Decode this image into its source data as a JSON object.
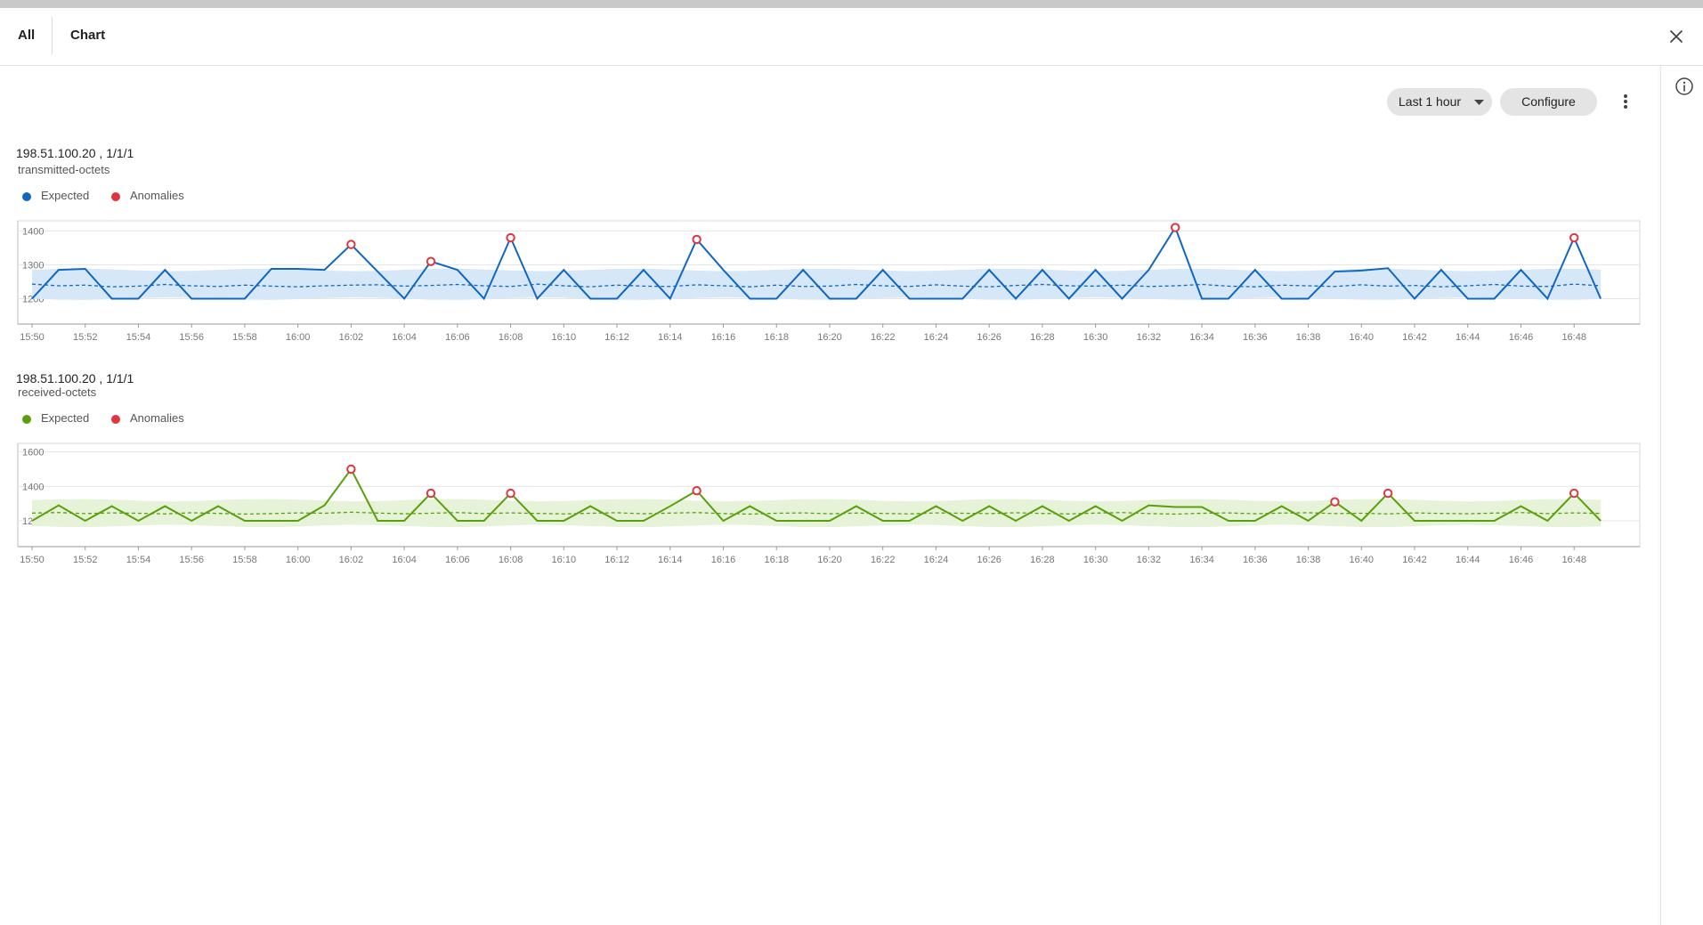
{
  "tabs": [
    {
      "label": "All"
    },
    {
      "label": "Chart"
    }
  ],
  "toolbar": {
    "range_label": "Last 1 hour",
    "configure_label": "Configure"
  },
  "icons": {
    "close": "close-icon",
    "info": "info-icon",
    "more": "more-vertical-icon",
    "caret": "caret-down-icon"
  },
  "colors": {
    "expected_blue": "#1167c0",
    "expected_green": "#5aa00d",
    "anomaly": "#e0353f",
    "band_blue": "#d6e8f7",
    "band_green": "#e6f3d8"
  },
  "charts": [
    {
      "title": "198.51.100.20 , 1/1/1",
      "subtitle": "transmitted-octets",
      "legend": [
        {
          "label": "Expected"
        },
        {
          "label": "Anomalies"
        }
      ]
    },
    {
      "title": "198.51.100.20 , 1/1/1",
      "subtitle": "received-octets",
      "legend": [
        {
          "label": "Expected"
        },
        {
          "label": "Anomalies"
        }
      ]
    }
  ],
  "chart_data": [
    {
      "type": "line",
      "title": "198.51.100.20 , 1/1/1",
      "subtitle": "transmitted-octets",
      "x_ticks": [
        "15:50",
        "15:52",
        "15:54",
        "15:56",
        "15:58",
        "16:00",
        "16:02",
        "16:04",
        "16:06",
        "16:08",
        "16:10",
        "16:12",
        "16:14",
        "16:16",
        "16:18",
        "16:20",
        "16:22",
        "16:24",
        "16:26",
        "16:28",
        "16:30",
        "16:32",
        "16:34",
        "16:36",
        "16:38",
        "16:40",
        "16:42",
        "16:44",
        "16:46",
        "16:48"
      ],
      "y_ticks": [
        1200,
        1300,
        1400
      ],
      "ylim": [
        1125,
        1430
      ],
      "x_start": "15:50",
      "x_end": "16:49",
      "step_minutes": 1,
      "series": [
        {
          "name": "Expected",
          "color": "#1167c0",
          "values": [
            1200,
            1285,
            1288,
            1200,
            1200,
            1285,
            1200,
            1200,
            1200,
            1288,
            1288,
            1285,
            1360,
            1280,
            1200,
            1310,
            1285,
            1200,
            1380,
            1200,
            1285,
            1200,
            1200,
            1285,
            1200,
            1375,
            1285,
            1200,
            1200,
            1285,
            1200,
            1200,
            1285,
            1200,
            1200,
            1200,
            1285,
            1200,
            1285,
            1200,
            1285,
            1200,
            1285,
            1410,
            1200,
            1200,
            1285,
            1200,
            1200,
            1280,
            1283,
            1290,
            1200,
            1285,
            1200,
            1200,
            1285,
            1200,
            1380,
            1200
          ]
        },
        {
          "name": "Baseline",
          "values": [
            1243,
            1238,
            1240,
            1235,
            1237,
            1242,
            1238,
            1236,
            1240,
            1237,
            1235,
            1238,
            1240,
            1241,
            1237,
            1239,
            1242,
            1238,
            1236,
            1243,
            1238,
            1235,
            1240,
            1237,
            1236,
            1241,
            1238,
            1235,
            1240,
            1236,
            1237,
            1242,
            1238,
            1236,
            1241,
            1237,
            1235,
            1239,
            1242,
            1238,
            1237,
            1240,
            1236,
            1238,
            1242,
            1237,
            1235,
            1240,
            1238,
            1236,
            1241,
            1237,
            1239,
            1235,
            1238,
            1242,
            1237,
            1236,
            1243,
            1238
          ],
          "band": [
            1200,
            1285
          ]
        }
      ],
      "anomalies": [
        {
          "x": "16:02",
          "y": 1360
        },
        {
          "x": "16:05",
          "y": 1310
        },
        {
          "x": "16:08",
          "y": 1380
        },
        {
          "x": "16:15",
          "y": 1375
        },
        {
          "x": "16:33",
          "y": 1410
        },
        {
          "x": "16:48",
          "y": 1380
        }
      ],
      "legend": "top-left"
    },
    {
      "type": "line",
      "title": "198.51.100.20 , 1/1/1",
      "subtitle": "received-octets",
      "x_ticks": [
        "15:50",
        "15:52",
        "15:54",
        "15:56",
        "15:58",
        "16:00",
        "16:02",
        "16:04",
        "16:06",
        "16:08",
        "16:10",
        "16:12",
        "16:14",
        "16:16",
        "16:18",
        "16:20",
        "16:22",
        "16:24",
        "16:26",
        "16:28",
        "16:30",
        "16:32",
        "16:34",
        "16:36",
        "16:38",
        "16:40",
        "16:42",
        "16:44",
        "16:46",
        "16:48"
      ],
      "y_ticks": [
        1200,
        1400,
        1600
      ],
      "ylim": [
        1050,
        1650
      ],
      "x_start": "15:50",
      "x_end": "16:49",
      "step_minutes": 1,
      "series": [
        {
          "name": "Expected",
          "color": "#5aa00d",
          "values": [
            1200,
            1290,
            1200,
            1285,
            1200,
            1285,
            1200,
            1285,
            1200,
            1200,
            1200,
            1290,
            1500,
            1200,
            1200,
            1360,
            1200,
            1200,
            1360,
            1200,
            1200,
            1285,
            1200,
            1200,
            1285,
            1375,
            1200,
            1285,
            1200,
            1200,
            1200,
            1285,
            1200,
            1200,
            1285,
            1200,
            1285,
            1200,
            1285,
            1200,
            1285,
            1200,
            1290,
            1280,
            1280,
            1200,
            1200,
            1285,
            1200,
            1310,
            1200,
            1360,
            1200,
            1200,
            1200,
            1200,
            1285,
            1200,
            1360,
            1200
          ]
        },
        {
          "name": "Baseline",
          "values": [
            1245,
            1248,
            1242,
            1246,
            1244,
            1240,
            1247,
            1243,
            1239,
            1242,
            1246,
            1244,
            1250,
            1245,
            1241,
            1244,
            1248,
            1242,
            1246,
            1243,
            1240,
            1244,
            1247,
            1241,
            1245,
            1248,
            1242,
            1239,
            1244,
            1246,
            1241,
            1245,
            1243,
            1240,
            1246,
            1244,
            1242,
            1247,
            1243,
            1240,
            1245,
            1248,
            1242,
            1239,
            1244,
            1246,
            1241,
            1245,
            1247,
            1242,
            1244,
            1240,
            1246,
            1243,
            1241,
            1245,
            1248,
            1242,
            1246,
            1243
          ],
          "band": [
            1170,
            1320
          ]
        }
      ],
      "anomalies": [
        {
          "x": "16:02",
          "y": 1500
        },
        {
          "x": "16:05",
          "y": 1360
        },
        {
          "x": "16:08",
          "y": 1360
        },
        {
          "x": "16:15",
          "y": 1375
        },
        {
          "x": "16:39",
          "y": 1310
        },
        {
          "x": "16:41",
          "y": 1360
        },
        {
          "x": "16:48",
          "y": 1360
        }
      ],
      "legend": "top-left"
    }
  ]
}
